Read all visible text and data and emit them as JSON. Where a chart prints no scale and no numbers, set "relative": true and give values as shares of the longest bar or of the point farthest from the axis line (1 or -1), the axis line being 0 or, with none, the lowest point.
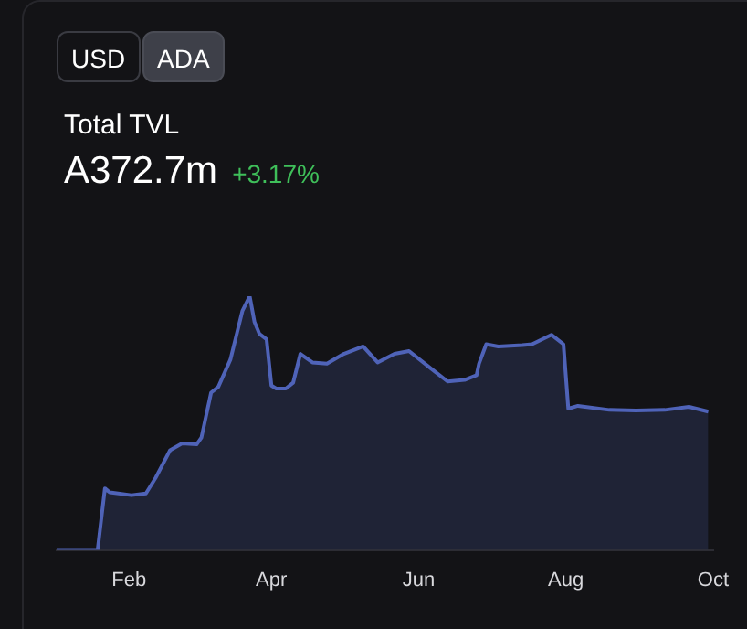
{
  "chart_data": {
    "type": "area",
    "title": "Total TVL",
    "subtitle": "A372.7m",
    "annotations": [
      "USD",
      "ADA",
      "+3.17%"
    ],
    "relative": true,
    "legend": false,
    "x": [
      "--01-02",
      "--01-19",
      "--01-22",
      "--01-24",
      "--02-02",
      "--02-08",
      "--02-12",
      "--02-18",
      "--02-23",
      "--03-01",
      "--03-03",
      "--03-07",
      "--03-10",
      "--03-15",
      "--03-20",
      "--03-23",
      "--03-25",
      "--03-27",
      "--03-30",
      "--04-01",
      "--04-03",
      "--04-07",
      "--04-10",
      "--04-13",
      "--04-18",
      "--04-24",
      "--05-01",
      "--05-09",
      "--05-15",
      "--05-22",
      "--05-28",
      "--06-06",
      "--06-13",
      "--06-20",
      "--06-25",
      "--06-26",
      "--06-29",
      "--07-04",
      "--07-14",
      "--07-18",
      "--07-26",
      "--07-31",
      "--08-02",
      "--08-06",
      "--08-19",
      "--08-30",
      "--09-11",
      "--09-21",
      "--09-29"
    ],
    "series": [
      {
        "color": "#4f63b8",
        "values": [
          0,
          0,
          0.243,
          0.227,
          0.216,
          0.223,
          0.284,
          0.393,
          0.42,
          0.416,
          0.443,
          0.62,
          0.643,
          0.75,
          0.943,
          1,
          0.898,
          0.852,
          0.83,
          0.648,
          0.636,
          0.636,
          0.659,
          0.773,
          0.739,
          0.734,
          0.773,
          0.802,
          0.739,
          0.773,
          0.784,
          0.716,
          0.664,
          0.67,
          0.689,
          0.734,
          0.811,
          0.802,
          0.807,
          0.811,
          0.848,
          0.811,
          0.557,
          0.568,
          0.552,
          0.55,
          0.552,
          0.564,
          0.545
        ]
      }
    ],
    "xlim": [
      "--01-02",
      "--10-01"
    ],
    "xticks": [
      {
        "value": "--02-01",
        "label": "Feb"
      },
      {
        "value": "--04-01",
        "label": "Apr"
      },
      {
        "value": "--06-01",
        "label": "Jun"
      },
      {
        "value": "--08-01",
        "label": "Aug"
      },
      {
        "value": "--10-01",
        "label": "Oct"
      }
    ]
  }
}
